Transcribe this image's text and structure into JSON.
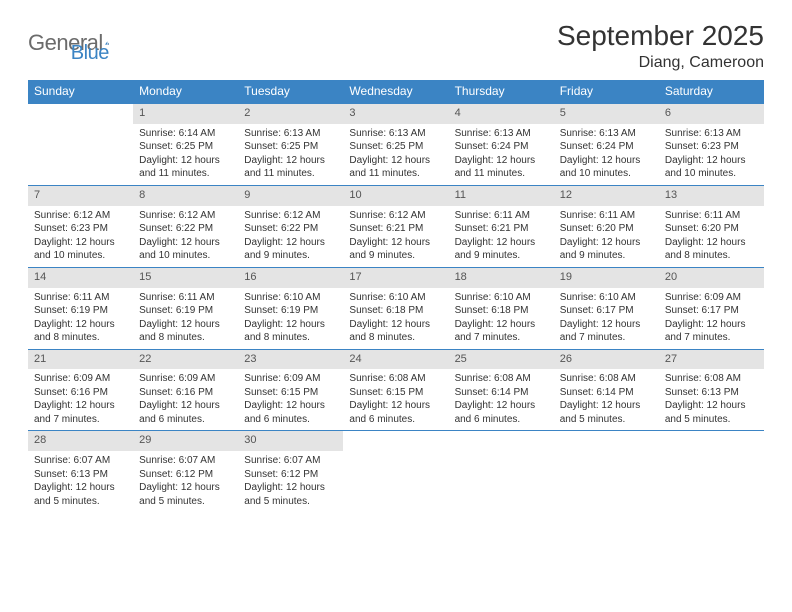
{
  "brand": {
    "part1": "General",
    "part2": "Blue"
  },
  "title": {
    "month_year": "September 2025",
    "location": "Diang, Cameroon"
  },
  "colors": {
    "header_bg": "#3b84c4",
    "header_text": "#ffffff",
    "daynum_bg": "#e4e4e4",
    "row_border": "#3b84c4",
    "logo_gray": "#6b6b6b",
    "logo_blue": "#3b84c4",
    "text": "#333333"
  },
  "day_headers": [
    "Sunday",
    "Monday",
    "Tuesday",
    "Wednesday",
    "Thursday",
    "Friday",
    "Saturday"
  ],
  "weeks": [
    [
      null,
      {
        "n": "1",
        "sr": "Sunrise: 6:14 AM",
        "ss": "Sunset: 6:25 PM",
        "d1": "Daylight: 12 hours",
        "d2": "and 11 minutes."
      },
      {
        "n": "2",
        "sr": "Sunrise: 6:13 AM",
        "ss": "Sunset: 6:25 PM",
        "d1": "Daylight: 12 hours",
        "d2": "and 11 minutes."
      },
      {
        "n": "3",
        "sr": "Sunrise: 6:13 AM",
        "ss": "Sunset: 6:25 PM",
        "d1": "Daylight: 12 hours",
        "d2": "and 11 minutes."
      },
      {
        "n": "4",
        "sr": "Sunrise: 6:13 AM",
        "ss": "Sunset: 6:24 PM",
        "d1": "Daylight: 12 hours",
        "d2": "and 11 minutes."
      },
      {
        "n": "5",
        "sr": "Sunrise: 6:13 AM",
        "ss": "Sunset: 6:24 PM",
        "d1": "Daylight: 12 hours",
        "d2": "and 10 minutes."
      },
      {
        "n": "6",
        "sr": "Sunrise: 6:13 AM",
        "ss": "Sunset: 6:23 PM",
        "d1": "Daylight: 12 hours",
        "d2": "and 10 minutes."
      }
    ],
    [
      {
        "n": "7",
        "sr": "Sunrise: 6:12 AM",
        "ss": "Sunset: 6:23 PM",
        "d1": "Daylight: 12 hours",
        "d2": "and 10 minutes."
      },
      {
        "n": "8",
        "sr": "Sunrise: 6:12 AM",
        "ss": "Sunset: 6:22 PM",
        "d1": "Daylight: 12 hours",
        "d2": "and 10 minutes."
      },
      {
        "n": "9",
        "sr": "Sunrise: 6:12 AM",
        "ss": "Sunset: 6:22 PM",
        "d1": "Daylight: 12 hours",
        "d2": "and 9 minutes."
      },
      {
        "n": "10",
        "sr": "Sunrise: 6:12 AM",
        "ss": "Sunset: 6:21 PM",
        "d1": "Daylight: 12 hours",
        "d2": "and 9 minutes."
      },
      {
        "n": "11",
        "sr": "Sunrise: 6:11 AM",
        "ss": "Sunset: 6:21 PM",
        "d1": "Daylight: 12 hours",
        "d2": "and 9 minutes."
      },
      {
        "n": "12",
        "sr": "Sunrise: 6:11 AM",
        "ss": "Sunset: 6:20 PM",
        "d1": "Daylight: 12 hours",
        "d2": "and 9 minutes."
      },
      {
        "n": "13",
        "sr": "Sunrise: 6:11 AM",
        "ss": "Sunset: 6:20 PM",
        "d1": "Daylight: 12 hours",
        "d2": "and 8 minutes."
      }
    ],
    [
      {
        "n": "14",
        "sr": "Sunrise: 6:11 AM",
        "ss": "Sunset: 6:19 PM",
        "d1": "Daylight: 12 hours",
        "d2": "and 8 minutes."
      },
      {
        "n": "15",
        "sr": "Sunrise: 6:11 AM",
        "ss": "Sunset: 6:19 PM",
        "d1": "Daylight: 12 hours",
        "d2": "and 8 minutes."
      },
      {
        "n": "16",
        "sr": "Sunrise: 6:10 AM",
        "ss": "Sunset: 6:19 PM",
        "d1": "Daylight: 12 hours",
        "d2": "and 8 minutes."
      },
      {
        "n": "17",
        "sr": "Sunrise: 6:10 AM",
        "ss": "Sunset: 6:18 PM",
        "d1": "Daylight: 12 hours",
        "d2": "and 8 minutes."
      },
      {
        "n": "18",
        "sr": "Sunrise: 6:10 AM",
        "ss": "Sunset: 6:18 PM",
        "d1": "Daylight: 12 hours",
        "d2": "and 7 minutes."
      },
      {
        "n": "19",
        "sr": "Sunrise: 6:10 AM",
        "ss": "Sunset: 6:17 PM",
        "d1": "Daylight: 12 hours",
        "d2": "and 7 minutes."
      },
      {
        "n": "20",
        "sr": "Sunrise: 6:09 AM",
        "ss": "Sunset: 6:17 PM",
        "d1": "Daylight: 12 hours",
        "d2": "and 7 minutes."
      }
    ],
    [
      {
        "n": "21",
        "sr": "Sunrise: 6:09 AM",
        "ss": "Sunset: 6:16 PM",
        "d1": "Daylight: 12 hours",
        "d2": "and 7 minutes."
      },
      {
        "n": "22",
        "sr": "Sunrise: 6:09 AM",
        "ss": "Sunset: 6:16 PM",
        "d1": "Daylight: 12 hours",
        "d2": "and 6 minutes."
      },
      {
        "n": "23",
        "sr": "Sunrise: 6:09 AM",
        "ss": "Sunset: 6:15 PM",
        "d1": "Daylight: 12 hours",
        "d2": "and 6 minutes."
      },
      {
        "n": "24",
        "sr": "Sunrise: 6:08 AM",
        "ss": "Sunset: 6:15 PM",
        "d1": "Daylight: 12 hours",
        "d2": "and 6 minutes."
      },
      {
        "n": "25",
        "sr": "Sunrise: 6:08 AM",
        "ss": "Sunset: 6:14 PM",
        "d1": "Daylight: 12 hours",
        "d2": "and 6 minutes."
      },
      {
        "n": "26",
        "sr": "Sunrise: 6:08 AM",
        "ss": "Sunset: 6:14 PM",
        "d1": "Daylight: 12 hours",
        "d2": "and 5 minutes."
      },
      {
        "n": "27",
        "sr": "Sunrise: 6:08 AM",
        "ss": "Sunset: 6:13 PM",
        "d1": "Daylight: 12 hours",
        "d2": "and 5 minutes."
      }
    ],
    [
      {
        "n": "28",
        "sr": "Sunrise: 6:07 AM",
        "ss": "Sunset: 6:13 PM",
        "d1": "Daylight: 12 hours",
        "d2": "and 5 minutes."
      },
      {
        "n": "29",
        "sr": "Sunrise: 6:07 AM",
        "ss": "Sunset: 6:12 PM",
        "d1": "Daylight: 12 hours",
        "d2": "and 5 minutes."
      },
      {
        "n": "30",
        "sr": "Sunrise: 6:07 AM",
        "ss": "Sunset: 6:12 PM",
        "d1": "Daylight: 12 hours",
        "d2": "and 5 minutes."
      },
      null,
      null,
      null,
      null
    ]
  ]
}
